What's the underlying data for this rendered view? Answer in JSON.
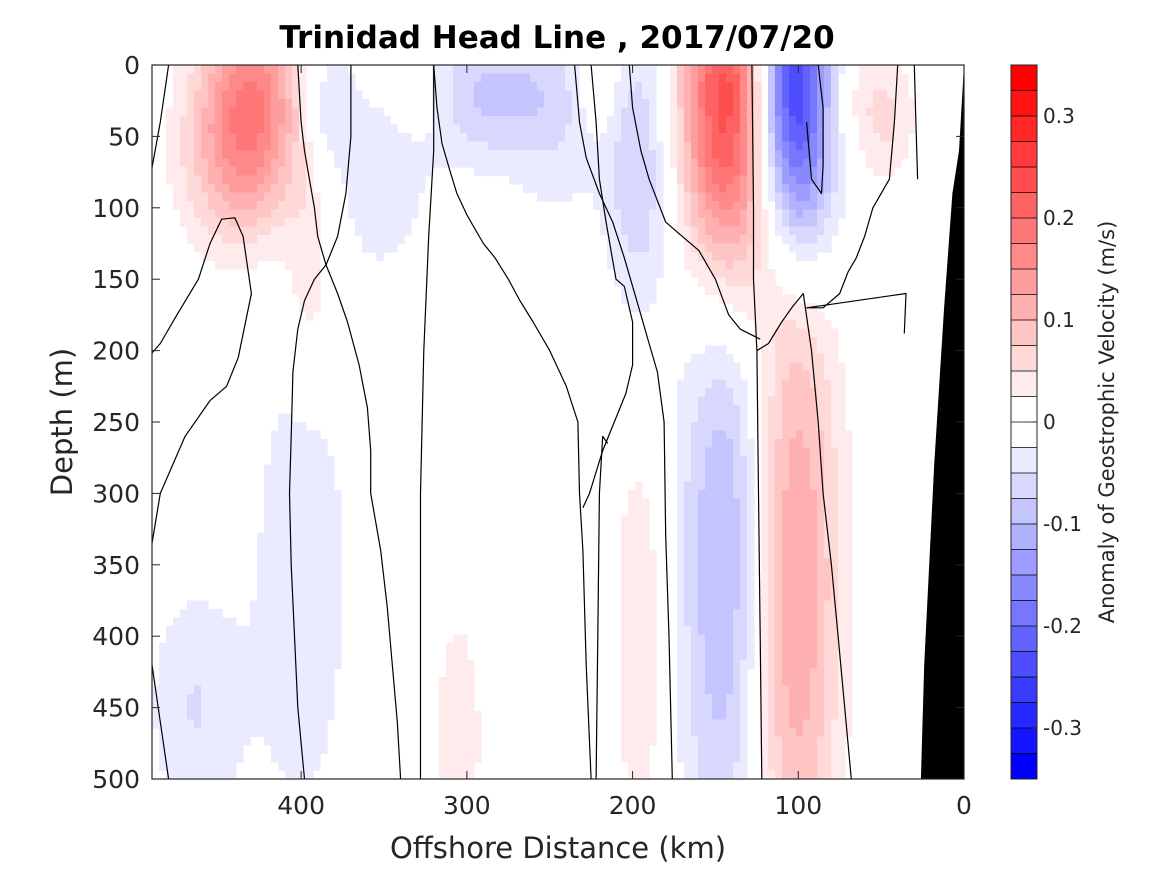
{
  "chart_data": {
    "type": "heatmap",
    "title": "Trinidad Head Line , 2017/07/20",
    "xlabel": "Offshore Distance (km)",
    "ylabel": "Depth (m)",
    "xlim": [
      490,
      0
    ],
    "x_reversed": true,
    "ylim": [
      0,
      500
    ],
    "y_reversed": true,
    "xticks": [
      400,
      300,
      200,
      100,
      0
    ],
    "yticks": [
      0,
      50,
      100,
      150,
      200,
      250,
      300,
      350,
      400,
      450,
      500
    ],
    "colorbar": {
      "label": "Anomaly of Geostrophic Velocity (m/s)",
      "range": [
        -0.35,
        0.35
      ],
      "step": 0.025,
      "ticks": [
        0.3,
        0.2,
        0.1,
        0,
        -0.1,
        -0.2,
        -0.3
      ],
      "negative_color": "#0000ff",
      "positive_color": "#ff0000",
      "zero_color": "#ffffff"
    },
    "features": [
      {
        "kind": "positive",
        "x": 430,
        "depth": 20,
        "sx": 22,
        "sd": 55,
        "amp": 0.15
      },
      {
        "kind": "positive",
        "x": 440,
        "depth": 70,
        "sx": 25,
        "sd": 45,
        "amp": 0.07
      },
      {
        "kind": "positive",
        "x": 395,
        "depth": 150,
        "sx": 10,
        "sd": 50,
        "amp": 0.05
      },
      {
        "kind": "negative",
        "x": 350,
        "depth": 60,
        "sx": 20,
        "sd": 60,
        "amp": -0.05
      },
      {
        "kind": "negative",
        "x": 385,
        "depth": 30,
        "sx": 10,
        "sd": 30,
        "amp": -0.05
      },
      {
        "kind": "positive",
        "x": 335,
        "depth": 20,
        "sx": 18,
        "sd": 30,
        "amp": 0.05
      },
      {
        "kind": "negative",
        "x": 290,
        "depth": 20,
        "sx": 30,
        "sd": 35,
        "amp": -0.08
      },
      {
        "kind": "negative",
        "x": 245,
        "depth": 30,
        "sx": 20,
        "sd": 60,
        "amp": -0.04
      },
      {
        "kind": "negative",
        "x": 195,
        "depth": 70,
        "sx": 15,
        "sd": 75,
        "amp": -0.08
      },
      {
        "kind": "positive",
        "x": 220,
        "depth": 15,
        "sx": 10,
        "sd": 25,
        "amp": 0.04
      },
      {
        "kind": "positive",
        "x": 140,
        "depth": 30,
        "sx": 22,
        "sd": 90,
        "amp": 0.28
      },
      {
        "kind": "negative",
        "x": 103,
        "depth": 20,
        "sx": 18,
        "sd": 75,
        "amp": -0.34
      },
      {
        "kind": "positive",
        "x": 75,
        "depth": 20,
        "sx": 20,
        "sd": 40,
        "amp": 0.06
      },
      {
        "kind": "positive",
        "x": 45,
        "depth": 40,
        "sx": 12,
        "sd": 30,
        "amp": 0.04
      },
      {
        "kind": "negative",
        "x": 400,
        "depth": 360,
        "sx": 25,
        "sd": 150,
        "amp": -0.04
      },
      {
        "kind": "negative",
        "x": 465,
        "depth": 450,
        "sx": 20,
        "sd": 60,
        "amp": -0.05
      },
      {
        "kind": "negative",
        "x": 140,
        "depth": 340,
        "sx": 22,
        "sd": 170,
        "amp": -0.12
      },
      {
        "kind": "positive",
        "x": 105,
        "depth": 360,
        "sx": 20,
        "sd": 170,
        "amp": 0.15
      },
      {
        "kind": "positive",
        "x": 195,
        "depth": 400,
        "sx": 12,
        "sd": 110,
        "amp": 0.05
      },
      {
        "kind": "positive",
        "x": 305,
        "depth": 470,
        "sx": 10,
        "sd": 60,
        "amp": 0.05
      }
    ],
    "zero_contours": [
      [
        [
          490,
          72
        ],
        [
          485,
          40
        ],
        [
          480,
          0
        ]
      ],
      [
        [
          490,
          335
        ],
        [
          485,
          300
        ],
        [
          470,
          260
        ],
        [
          455,
          235
        ],
        [
          445,
          225
        ],
        [
          438,
          205
        ],
        [
          430,
          160
        ],
        [
          435,
          120
        ],
        [
          440,
          107
        ],
        [
          448,
          108
        ],
        [
          455,
          125
        ],
        [
          462,
          150
        ],
        [
          475,
          175
        ],
        [
          485,
          195
        ],
        [
          500,
          215
        ],
        [
          510,
          230
        ],
        [
          520,
          248
        ],
        [
          528,
          270
        ],
        [
          533,
          300
        ],
        [
          540,
          340
        ],
        [
          548,
          400
        ],
        [
          553,
          450
        ],
        [
          557,
          500
        ]
      ],
      [
        [
          480,
          500
        ],
        [
          485,
          460
        ],
        [
          490,
          420
        ],
        [
          495,
          380
        ],
        [
          500,
          340
        ],
        [
          505,
          300
        ],
        [
          510,
          260
        ],
        [
          513,
          220
        ],
        [
          518,
          200
        ],
        [
          525,
          175
        ],
        [
          530,
          150
        ],
        [
          535,
          120
        ],
        [
          540,
          80
        ],
        [
          545,
          40
        ],
        [
          548,
          0
        ]
      ],
      [
        [
          398,
          500
        ],
        [
          402,
          450
        ],
        [
          404,
          400
        ],
        [
          406,
          350
        ],
        [
          407,
          300
        ],
        [
          406,
          260
        ],
        [
          405,
          215
        ],
        [
          402,
          185
        ],
        [
          398,
          165
        ],
        [
          392,
          150
        ],
        [
          385,
          140
        ],
        [
          378,
          120
        ],
        [
          373,
          90
        ],
        [
          370,
          50
        ],
        [
          370,
          0
        ]
      ],
      [
        [
          340,
          500
        ],
        [
          342,
          460
        ],
        [
          345,
          420
        ],
        [
          348,
          380
        ],
        [
          352,
          340
        ],
        [
          358,
          300
        ],
        [
          358,
          270
        ],
        [
          360,
          240
        ],
        [
          365,
          210
        ],
        [
          372,
          180
        ],
        [
          378,
          160
        ],
        [
          385,
          140
        ],
        [
          390,
          120
        ],
        [
          392,
          100
        ],
        [
          395,
          80
        ],
        [
          398,
          60
        ],
        [
          400,
          40
        ],
        [
          402,
          0
        ]
      ],
      [
        [
          328,
          500
        ],
        [
          328,
          400
        ],
        [
          328,
          300
        ],
        [
          326,
          200
        ],
        [
          323,
          120
        ],
        [
          320,
          60
        ],
        [
          320,
          0
        ]
      ],
      [
        [
          225,
          500
        ],
        [
          228,
          420
        ],
        [
          230,
          340
        ],
        [
          232,
          300
        ],
        [
          233,
          250
        ],
        [
          240,
          225
        ],
        [
          250,
          200
        ],
        [
          260,
          180
        ],
        [
          268,
          165
        ],
        [
          275,
          150
        ],
        [
          283,
          135
        ],
        [
          290,
          125
        ],
        [
          295,
          115
        ],
        [
          300,
          105
        ],
        [
          306,
          90
        ],
        [
          310,
          75
        ],
        [
          315,
          55
        ],
        [
          318,
          30
        ],
        [
          320,
          0
        ]
      ],
      [
        [
          235,
          0
        ],
        [
          232,
          40
        ],
        [
          228,
          65
        ],
        [
          220,
          90
        ],
        [
          212,
          110
        ],
        [
          205,
          135
        ],
        [
          200,
          155
        ],
        [
          195,
          175
        ],
        [
          190,
          195
        ],
        [
          185,
          215
        ],
        [
          181,
          250
        ],
        [
          180,
          330
        ],
        [
          178,
          400
        ],
        [
          176,
          500
        ]
      ],
      [
        [
          222,
          500
        ],
        [
          221,
          400
        ],
        [
          220,
          300
        ],
        [
          218,
          260
        ],
        [
          215,
          265
        ]
      ],
      [
        [
          225,
          0
        ],
        [
          222,
          40
        ],
        [
          220,
          80
        ],
        [
          216,
          110
        ],
        [
          213,
          130
        ],
        [
          210,
          150
        ],
        [
          205,
          155
        ],
        [
          200,
          180
        ],
        [
          200,
          210
        ],
        [
          204,
          230
        ],
        [
          211,
          250
        ],
        [
          218,
          270
        ],
        [
          226,
          300
        ],
        [
          230,
          310
        ]
      ],
      [
        [
          122,
          500
        ],
        [
          123,
          400
        ],
        [
          124,
          300
        ],
        [
          125,
          200
        ],
        [
          127,
          150
        ],
        [
          127,
          100
        ],
        [
          128,
          0
        ]
      ],
      [
        [
          123,
          192
        ],
        [
          135,
          185
        ],
        [
          142,
          175
        ],
        [
          150,
          150
        ],
        [
          160,
          130
        ],
        [
          170,
          120
        ],
        [
          180,
          110
        ],
        [
          185,
          95
        ],
        [
          190,
          80
        ],
        [
          195,
          60
        ],
        [
          200,
          30
        ],
        [
          202,
          0
        ]
      ],
      [
        [
          68,
          500
        ],
        [
          72,
          450
        ],
        [
          76,
          400
        ],
        [
          80,
          350
        ],
        [
          85,
          300
        ],
        [
          88,
          250
        ],
        [
          92,
          200
        ],
        [
          97,
          160
        ],
        [
          104,
          170
        ],
        [
          110,
          180
        ],
        [
          118,
          195
        ],
        [
          125,
          200
        ]
      ],
      [
        [
          88,
          0
        ],
        [
          85,
          30
        ],
        [
          85,
          70
        ],
        [
          86,
          90
        ],
        [
          92,
          80
        ],
        [
          95,
          40
        ]
      ],
      [
        [
          40,
          0
        ],
        [
          42,
          40
        ],
        [
          45,
          80
        ],
        [
          55,
          100
        ],
        [
          60,
          120
        ],
        [
          65,
          135
        ],
        [
          70,
          145
        ],
        [
          75,
          160
        ],
        [
          85,
          170
        ],
        [
          95,
          170
        ],
        [
          35,
          160
        ],
        [
          36,
          188
        ]
      ],
      [
        [
          30,
          0
        ],
        [
          29,
          40
        ],
        [
          28,
          80
        ]
      ]
    ],
    "seafloor": [
      [
        0,
        0
      ],
      [
        3,
        60
      ],
      [
        7,
        90
      ],
      [
        12,
        170
      ],
      [
        18,
        280
      ],
      [
        24,
        420
      ],
      [
        26,
        500
      ],
      [
        0,
        500
      ]
    ]
  }
}
